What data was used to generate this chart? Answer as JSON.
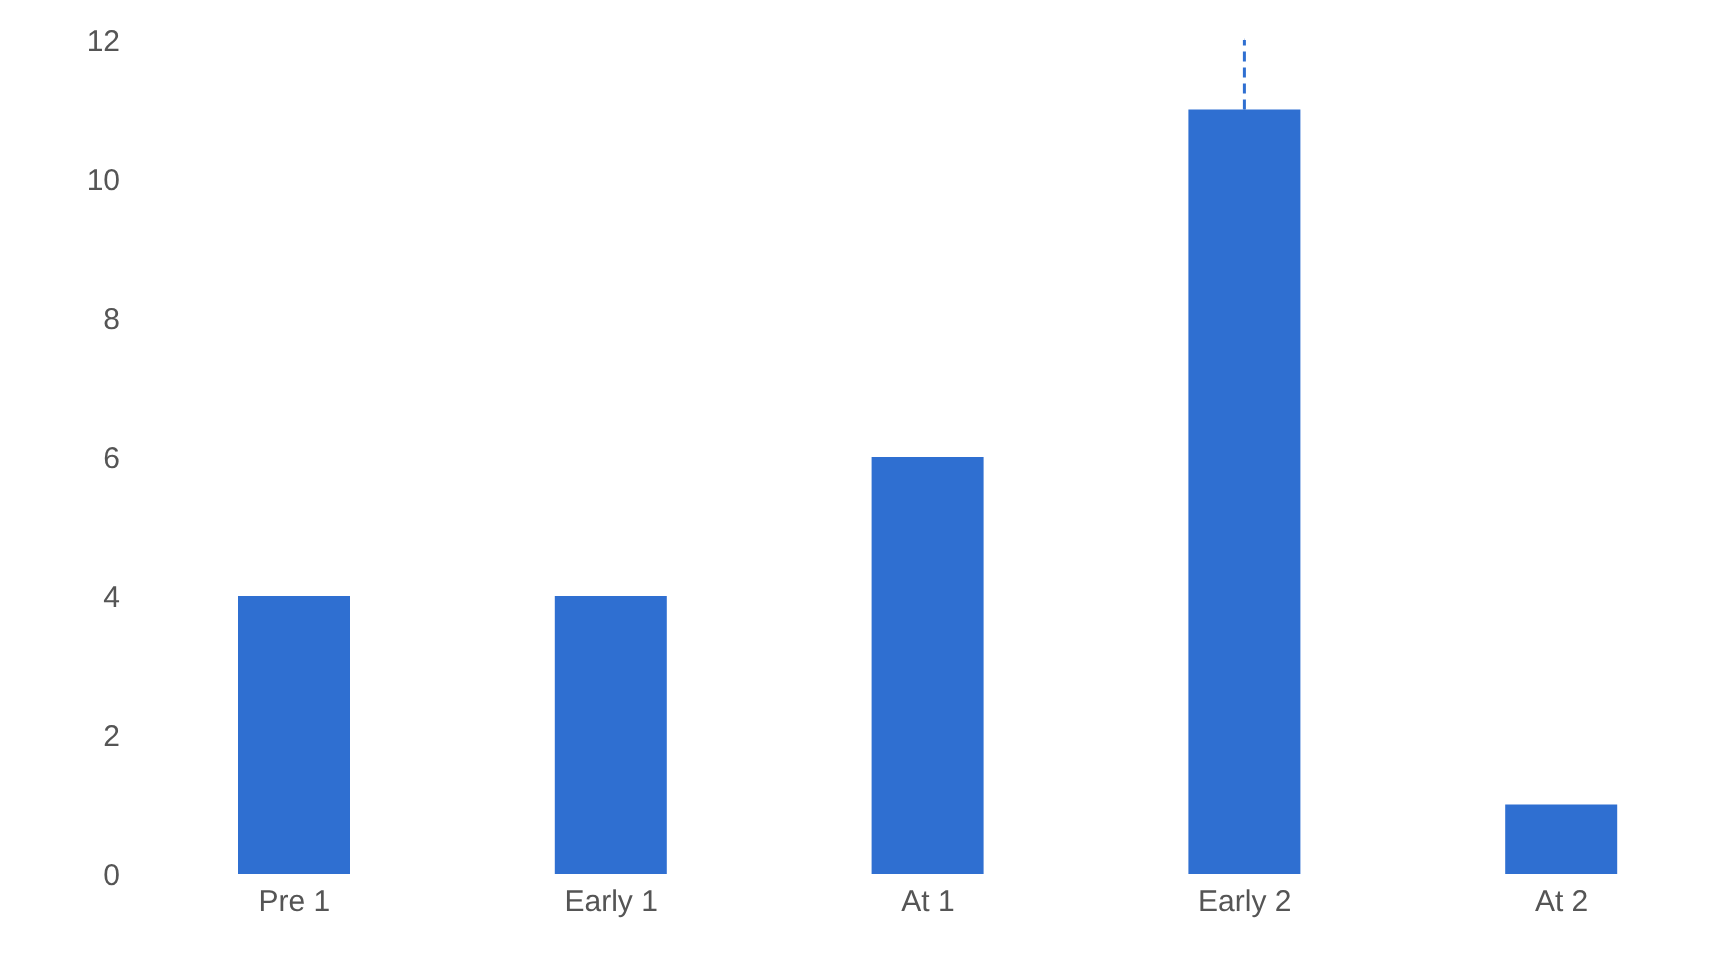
{
  "chart_data": {
    "type": "bar",
    "categories": [
      "Pre 1",
      "Early 1",
      "At 1",
      "Early 2",
      "At 2"
    ],
    "values": [
      4,
      4,
      6,
      11,
      1
    ],
    "errors": [
      null,
      null,
      null,
      [
        11,
        12
      ],
      null
    ],
    "color": "#2f6fd1",
    "ylim": [
      0,
      12
    ],
    "yticks": [
      0,
      2,
      4,
      6,
      8,
      10,
      12
    ],
    "grid": false
  }
}
